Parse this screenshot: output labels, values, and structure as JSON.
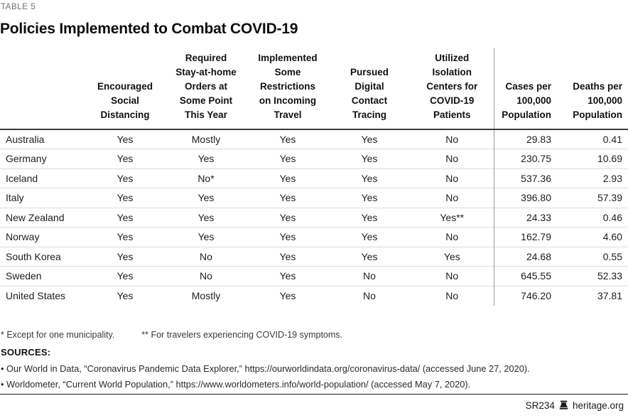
{
  "eyebrow": "TABLE 5",
  "title": "Policies Implemented to Combat COVID-19",
  "table": {
    "columns": [
      {
        "label": "",
        "align": "left"
      },
      {
        "label": "Encouraged\nSocial\nDistancing",
        "align": "center"
      },
      {
        "label": "Required\nStay-at-home\nOrders at\nSome Point\nThis Year",
        "align": "center"
      },
      {
        "label": "Implemented\nSome\nRestrictions\non Incoming\nTravel",
        "align": "center"
      },
      {
        "label": "Pursued\nDigital\nContact\nTracing",
        "align": "center"
      },
      {
        "label": "Utilized\nIsolation\nCenters for\nCOVID-19\nPatients",
        "align": "center"
      },
      {
        "label": "Cases per\n100,000\nPopulation",
        "align": "right"
      },
      {
        "label": "Deaths per\n100,000\nPopulation",
        "align": "right"
      }
    ],
    "rows": [
      [
        "Australia",
        "Yes",
        "Mostly",
        "Yes",
        "Yes",
        "No",
        "29.83",
        "0.41"
      ],
      [
        "Germany",
        "Yes",
        "Yes",
        "Yes",
        "Yes",
        "No",
        "230.75",
        "10.69"
      ],
      [
        "Iceland",
        "Yes",
        "No*",
        "Yes",
        "Yes",
        "No",
        "537.36",
        "2.93"
      ],
      [
        "Italy",
        "Yes",
        "Yes",
        "Yes",
        "Yes",
        "No",
        "396.80",
        "57.39"
      ],
      [
        "New Zealand",
        "Yes",
        "Yes",
        "Yes",
        "Yes",
        "Yes**",
        "24.33",
        "0.46"
      ],
      [
        "Norway",
        "Yes",
        "Yes",
        "Yes",
        "Yes",
        "No",
        "162.79",
        "4.60"
      ],
      [
        "South Korea",
        "Yes",
        "No",
        "Yes",
        "Yes",
        "Yes",
        "24.68",
        "0.55"
      ],
      [
        "Sweden",
        "Yes",
        "No",
        "Yes",
        "No",
        "No",
        "645.55",
        "52.33"
      ],
      [
        "United States",
        "Yes",
        "Mostly",
        "Yes",
        "No",
        "No",
        "746.20",
        "37.81"
      ]
    ]
  },
  "footnotes": {
    "note1": "* Except for one municipality.",
    "note2": "** For travelers experiencing COVID-19 symptoms."
  },
  "sources": {
    "heading": "SOURCES:",
    "items": [
      "• Our World in Data, “Coronavirus Pandemic Data Explorer,” https://ourworldindata.org/coronavirus-data/ (accessed June 27, 2020).",
      "• Worldometer, “Current World Population,” https://www.worldometers.info/world-population/ (accessed May 7, 2020)."
    ]
  },
  "footer": {
    "report_id": "SR234",
    "site": "heritage.org"
  },
  "colors": {
    "header_rule": "#3c3c3c",
    "row_separator": "#dcdcdc",
    "column_divider": "#9b9b9b",
    "eyebrow_gray": "#6e6e6e",
    "text_black": "#111111"
  }
}
